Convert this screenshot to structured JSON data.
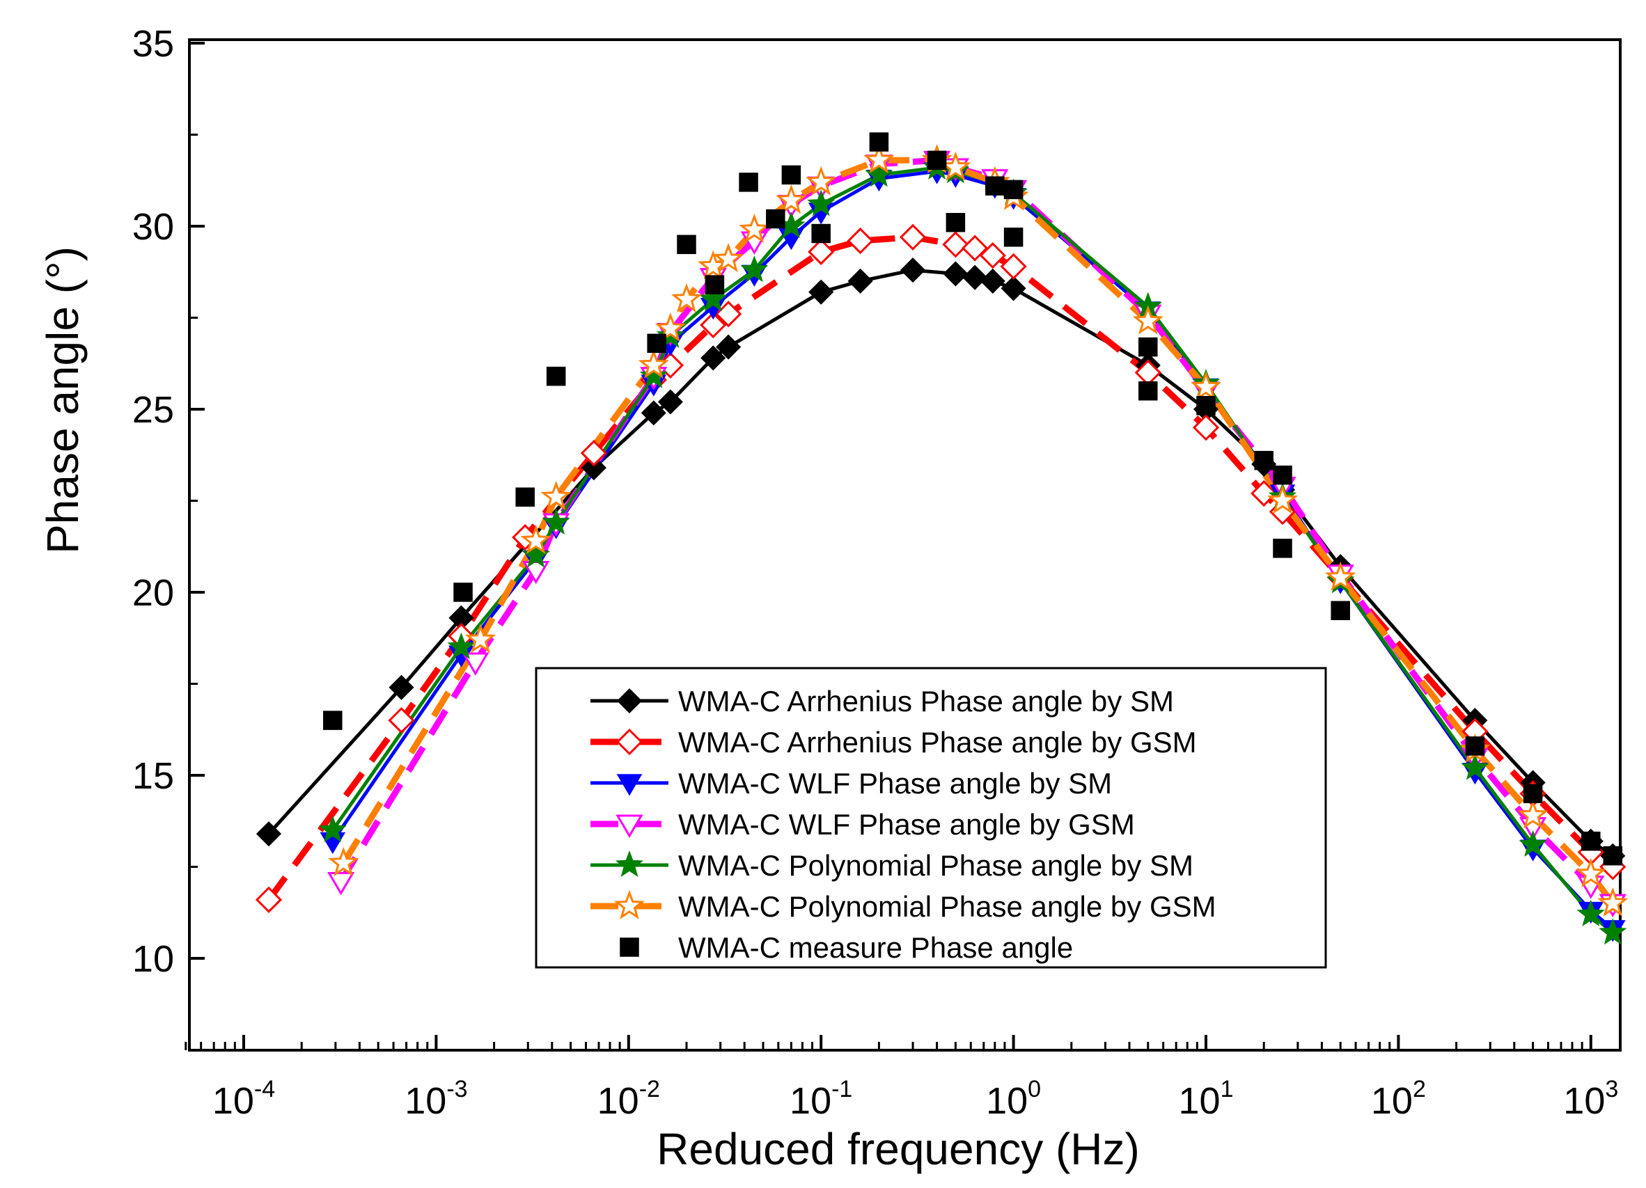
{
  "chart_data": {
    "type": "line",
    "title": "",
    "xlabel": "Reduced frequency (Hz)",
    "ylabel": "Phase angle (°)",
    "xscale": "log",
    "xlim": [
      5e-05,
      1500
    ],
    "ylim": [
      7.5,
      35
    ],
    "x_ticks": [
      {
        "value": 0.0001,
        "base": "10",
        "exp": "-4"
      },
      {
        "value": 0.001,
        "base": "10",
        "exp": "-3"
      },
      {
        "value": 0.01,
        "base": "10",
        "exp": "-2"
      },
      {
        "value": 0.1,
        "base": "10",
        "exp": "-1"
      },
      {
        "value": 1,
        "base": "10",
        "exp": "0"
      },
      {
        "value": 10,
        "base": "10",
        "exp": "1"
      },
      {
        "value": 100,
        "base": "10",
        "exp": "2"
      },
      {
        "value": 1000,
        "base": "10",
        "exp": "3"
      }
    ],
    "y_ticks": [
      "10",
      "15",
      "20",
      "25",
      "30",
      "35"
    ],
    "legend_position": "lower-center",
    "series": [
      {
        "name": "WMA-C Arrhenius Phase angle by SM",
        "color": "#000000",
        "line": "solid",
        "marker": "diamond-filled",
        "x": [
          0.000135,
          0.00066,
          0.00135,
          0.0066,
          0.0135,
          0.0165,
          0.0275,
          0.033,
          0.1,
          0.16,
          0.3,
          0.5,
          0.63,
          0.78,
          1,
          5,
          10,
          20,
          25,
          50,
          250,
          500,
          1000,
          1300
        ],
        "y": [
          13.4,
          17.4,
          19.3,
          23.4,
          24.9,
          25.2,
          26.4,
          26.7,
          28.2,
          28.5,
          28.8,
          28.7,
          28.6,
          28.5,
          28.3,
          26.2,
          25.0,
          23.5,
          22.8,
          20.7,
          16.5,
          14.8,
          13.2,
          12.8
        ]
      },
      {
        "name": "WMA-C Arrhenius Phase angle by GSM",
        "color": "#ff0000",
        "line": "dashed",
        "marker": "diamond-open",
        "x": [
          0.000135,
          0.00066,
          0.00135,
          0.0029,
          0.0066,
          0.0135,
          0.0165,
          0.0275,
          0.033,
          0.1,
          0.16,
          0.3,
          0.5,
          0.63,
          0.78,
          1,
          5,
          10,
          20,
          25,
          50,
          250,
          500,
          1000,
          1300
        ],
        "y": [
          11.6,
          16.5,
          18.8,
          21.5,
          23.8,
          25.8,
          26.2,
          27.3,
          27.6,
          29.3,
          29.6,
          29.7,
          29.5,
          29.4,
          29.2,
          28.9,
          26.0,
          24.5,
          22.7,
          22.2,
          20.4,
          16.2,
          14.5,
          12.9,
          12.5
        ]
      },
      {
        "name": "WMA-C WLF Phase angle by SM",
        "color": "#0000ff",
        "line": "solid",
        "marker": "triangle-down-filled",
        "x": [
          0.00029,
          0.00135,
          0.0033,
          0.0042,
          0.0135,
          0.0165,
          0.0275,
          0.045,
          0.07,
          0.1,
          0.2,
          0.4,
          0.5,
          0.8,
          1,
          5,
          10,
          25,
          50,
          250,
          500,
          1000,
          1300
        ],
        "y": [
          13.2,
          18.3,
          20.9,
          21.8,
          25.7,
          26.8,
          27.8,
          28.7,
          29.7,
          30.4,
          31.3,
          31.5,
          31.4,
          31.1,
          30.8,
          27.7,
          25.6,
          22.7,
          20.3,
          15.1,
          13.0,
          11.3,
          10.8
        ]
      },
      {
        "name": "WMA-C WLF Phase angle by GSM",
        "color": "#ff00ff",
        "line": "dashed",
        "marker": "triangle-down-open",
        "x": [
          0.00032,
          0.0016,
          0.0033,
          0.0042,
          0.0135,
          0.0165,
          0.0275,
          0.045,
          0.07,
          0.1,
          0.2,
          0.4,
          0.5,
          0.8,
          1,
          5,
          10,
          25,
          50,
          250,
          500,
          1000,
          1300
        ],
        "y": [
          12.1,
          18.1,
          20.6,
          21.9,
          25.9,
          27.1,
          28.6,
          29.6,
          30.6,
          31.1,
          31.7,
          31.8,
          31.6,
          31.3,
          31.0,
          27.6,
          25.5,
          22.9,
          20.5,
          15.5,
          13.6,
          12.0,
          11.5
        ]
      },
      {
        "name": "WMA-C Polynomial Phase angle by SM",
        "color": "#008000",
        "line": "solid",
        "marker": "star-filled",
        "x": [
          0.00029,
          0.00135,
          0.0033,
          0.0042,
          0.0135,
          0.0165,
          0.0275,
          0.045,
          0.07,
          0.1,
          0.2,
          0.4,
          0.5,
          0.8,
          1,
          5,
          10,
          25,
          50,
          250,
          500,
          1000,
          1300
        ],
        "y": [
          13.5,
          18.5,
          21.0,
          21.9,
          25.9,
          27.0,
          28.0,
          28.8,
          30.0,
          30.6,
          31.4,
          31.6,
          31.5,
          31.2,
          30.9,
          27.8,
          25.7,
          22.6,
          20.3,
          15.2,
          13.1,
          11.2,
          10.7
        ]
      },
      {
        "name": "WMA-C Polynomial Phase angle by GSM",
        "color": "#ff8000",
        "line": "dashed",
        "marker": "star-open",
        "x": [
          0.00033,
          0.0017,
          0.0033,
          0.0042,
          0.0135,
          0.0165,
          0.02,
          0.0275,
          0.033,
          0.045,
          0.07,
          0.1,
          0.2,
          0.4,
          0.5,
          0.8,
          1,
          5,
          10,
          25,
          50,
          250,
          500,
          1000,
          1300
        ],
        "y": [
          12.6,
          18.7,
          21.4,
          22.6,
          26.2,
          27.2,
          28.0,
          28.9,
          29.1,
          29.9,
          30.7,
          31.2,
          31.8,
          31.8,
          31.6,
          31.2,
          30.8,
          27.4,
          25.6,
          22.5,
          20.4,
          15.7,
          13.9,
          12.3,
          11.5
        ]
      },
      {
        "name": "WMA-C measure Phase angle",
        "color": "#000000",
        "line": "none",
        "marker": "square-filled",
        "x": [
          0.00029,
          0.00138,
          0.0029,
          0.0042,
          0.014,
          0.02,
          0.028,
          0.042,
          0.058,
          0.07,
          0.1,
          0.2,
          0.4,
          0.5,
          0.8,
          1,
          1,
          5,
          5,
          10,
          20,
          25,
          25,
          50,
          250,
          500,
          1000,
          1300
        ],
        "y": [
          16.5,
          20.0,
          22.6,
          25.9,
          26.8,
          29.5,
          28.4,
          31.2,
          30.2,
          31.4,
          29.8,
          32.3,
          31.8,
          30.1,
          31.1,
          31.0,
          29.7,
          26.7,
          25.5,
          25.1,
          23.6,
          23.2,
          21.2,
          19.5,
          15.8,
          14.5,
          13.2,
          12.8
        ]
      }
    ]
  }
}
